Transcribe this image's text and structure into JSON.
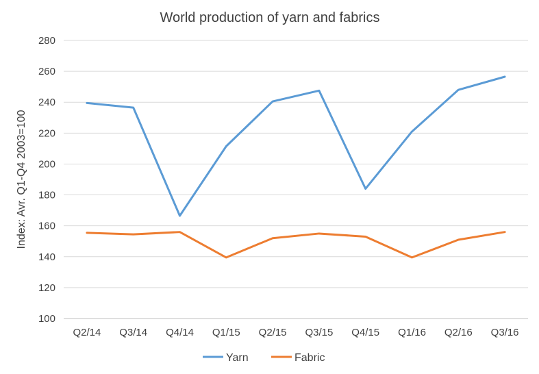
{
  "chart_data": {
    "type": "line",
    "title": "World production of yarn and fabrics",
    "xlabel": "",
    "ylabel": "Index: Avr. Q1-Q4 2003=100",
    "categories": [
      "Q2/14",
      "Q3/14",
      "Q4/14",
      "Q1/15",
      "Q2/15",
      "Q3/15",
      "Q4/15",
      "Q1/16",
      "Q2/16",
      "Q3/16"
    ],
    "ylim": [
      100,
      280
    ],
    "yticks": [
      100,
      120,
      140,
      160,
      180,
      200,
      220,
      240,
      260,
      280
    ],
    "grid": true,
    "legend_position": "bottom",
    "series": [
      {
        "name": "Yarn",
        "color": "#5b9bd5",
        "values": [
          239.5,
          236.5,
          166.5,
          211.5,
          240.5,
          247.5,
          184,
          221,
          248,
          256.5
        ]
      },
      {
        "name": "Fabric",
        "color": "#ed7d31",
        "values": [
          155.5,
          154.5,
          156,
          139.5,
          152,
          155,
          153,
          139.5,
          151,
          156
        ]
      }
    ]
  }
}
